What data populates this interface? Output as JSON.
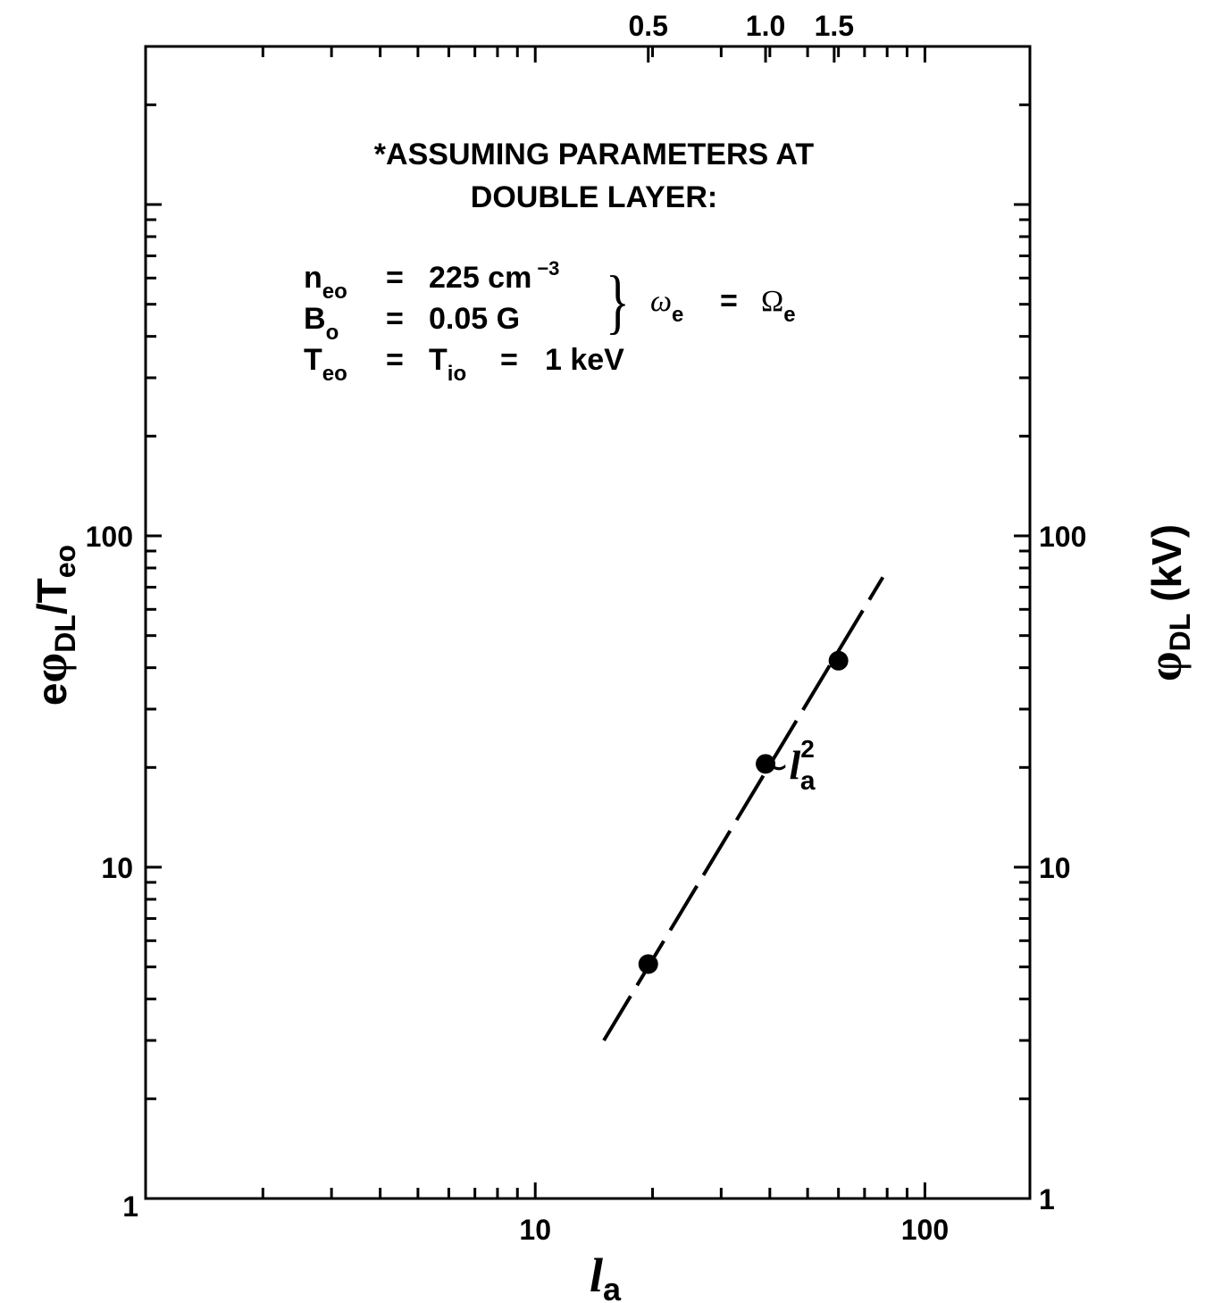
{
  "chart_data": {
    "type": "scatter",
    "x_scale": "log",
    "y_scale": "log",
    "xlim": [
      1,
      186
    ],
    "ylim": [
      1,
      3000
    ],
    "x_ticks": [
      {
        "value": 10,
        "label": "10"
      },
      {
        "value": 100,
        "label": "100"
      }
    ],
    "x_corner_label": "1",
    "y_ticks": [
      {
        "value": 10,
        "label": "10"
      },
      {
        "value": 100,
        "label": "100"
      }
    ],
    "y_corner_label": "1",
    "right_ticks": [
      {
        "value": 1,
        "label": "1"
      },
      {
        "value": 10,
        "label": "10"
      },
      {
        "value": 100,
        "label": "100"
      }
    ],
    "top_axis": {
      "ticks": [
        {
          "x": 19.5,
          "label": "0.5"
        },
        {
          "x": 39,
          "label": "1.0"
        },
        {
          "x": 58.5,
          "label": "1.5"
        }
      ]
    },
    "xlabel": {
      "main": "l",
      "sub": "a"
    },
    "ylabel": {
      "pre": "e",
      "phi": "φ",
      "sub": "DL",
      "post": "/T",
      "sub2": "eo"
    },
    "right_ylabel": {
      "phi": "φ",
      "sub": "DL",
      "post": " (kV)"
    },
    "points": [
      {
        "x": 19.5,
        "y": 5.1
      },
      {
        "x": 39,
        "y": 20.5
      },
      {
        "x": 60,
        "y": 42
      }
    ],
    "fit_line": {
      "x": [
        15,
        78
      ],
      "y": [
        3.0,
        75
      ],
      "style": "dashed"
    },
    "fit_label": {
      "tilde": "∼",
      "l": "l",
      "sub": "a",
      "sup": "2"
    },
    "annotations": {
      "heading_1": "*ASSUMING PARAMETERS AT",
      "heading_2": "DOUBLE LAYER:",
      "neo_sym": "n",
      "neo_sub": "eo",
      "neo_eq": "=",
      "neo_val": "225 cm",
      "neo_exp": "−3",
      "bo_sym": "B",
      "bo_sub": "o",
      "bo_eq": "=",
      "bo_val": "0.05 G",
      "brace": "}",
      "omega_e": "ω",
      "omega_e_sub": "e",
      "omega_eq": "=",
      "Omega_e": "Ω",
      "Omega_e_sub": "e",
      "teo_sym": "T",
      "teo_sub": "eo",
      "teo_eq": "=",
      "tio_sym": "T",
      "tio_sub": "io",
      "tio_eq": "=",
      "tio_val": "1 keV"
    }
  }
}
